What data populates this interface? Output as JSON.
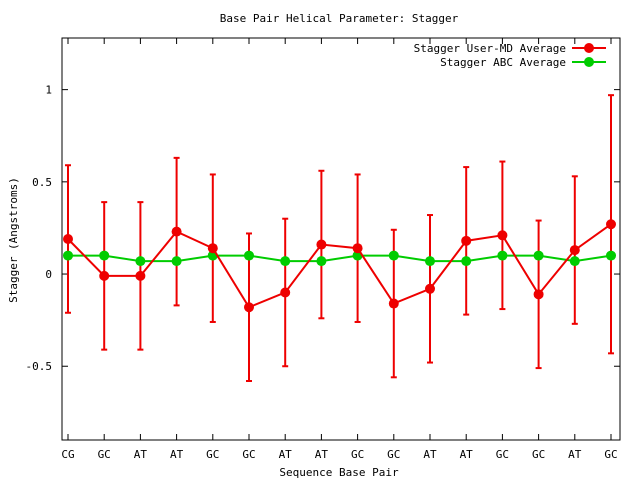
{
  "chart_data": {
    "type": "line",
    "title": "Base Pair Helical Parameter: Stagger",
    "xlabel": "Sequence Base Pair",
    "ylabel": "Stagger (Angstroms)",
    "categories": [
      "CG",
      "GC",
      "AT",
      "AT",
      "GC",
      "GC",
      "AT",
      "AT",
      "GC",
      "GC",
      "AT",
      "AT",
      "GC",
      "GC",
      "AT",
      "GC"
    ],
    "ylim": [
      -0.9,
      1.28
    ],
    "yticks": [
      -0.5,
      0,
      0.5,
      1
    ],
    "ytick_labels": [
      "-0.5",
      "0",
      "0.5",
      "1"
    ],
    "grid": false,
    "legend_position": "top-right",
    "series": [
      {
        "name": "Stagger User-MD Average",
        "color": "#ee0000",
        "values": [
          0.19,
          -0.01,
          -0.01,
          0.23,
          0.14,
          -0.18,
          -0.1,
          0.16,
          0.14,
          -0.16,
          -0.08,
          0.18,
          0.21,
          -0.11,
          0.13,
          0.27
        ],
        "err_low": [
          -0.21,
          -0.41,
          -0.41,
          -0.17,
          -0.26,
          -0.58,
          -0.5,
          -0.24,
          -0.26,
          -0.56,
          -0.48,
          -0.22,
          -0.19,
          -0.51,
          -0.27,
          -0.43
        ],
        "err_high": [
          0.59,
          0.39,
          0.39,
          0.63,
          0.54,
          0.22,
          0.3,
          0.56,
          0.54,
          0.24,
          0.32,
          0.58,
          0.61,
          0.29,
          0.53,
          0.97
        ]
      },
      {
        "name": "Stagger ABC Average",
        "color": "#00cc00",
        "values": [
          0.1,
          0.1,
          0.07,
          0.07,
          0.1,
          0.1,
          0.07,
          0.07,
          0.1,
          0.1,
          0.07,
          0.07,
          0.1,
          0.1,
          0.07,
          0.1
        ]
      }
    ]
  }
}
